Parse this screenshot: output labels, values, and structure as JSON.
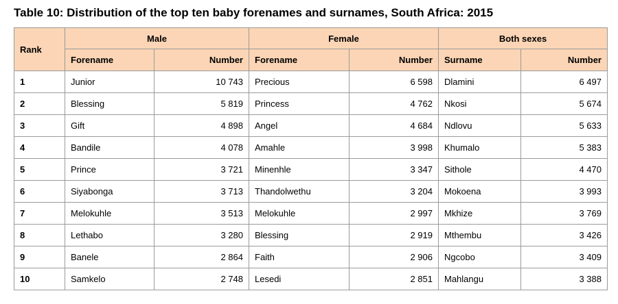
{
  "title": "Table 10: Distribution of the top ten baby forenames and surnames, South Africa: 2015",
  "header": {
    "rank": "Rank",
    "groups": {
      "male": "Male",
      "female": "Female",
      "both": "Both sexes"
    },
    "columns": {
      "male_name": "Forename",
      "male_number": "Number",
      "female_name": "Forename",
      "female_number": "Number",
      "both_name": "Surname",
      "both_number": "Number"
    }
  },
  "rows": [
    {
      "rank": "1",
      "male_name": "Junior",
      "male_number": "10 743",
      "female_name": "Precious",
      "female_number": "6 598",
      "surname": "Dlamini",
      "surname_number": "6 497"
    },
    {
      "rank": "2",
      "male_name": "Blessing",
      "male_number": "5 819",
      "female_name": "Princess",
      "female_number": "4 762",
      "surname": "Nkosi",
      "surname_number": "5 674"
    },
    {
      "rank": "3",
      "male_name": "Gift",
      "male_number": "4 898",
      "female_name": "Angel",
      "female_number": "4 684",
      "surname": "Ndlovu",
      "surname_number": "5 633"
    },
    {
      "rank": "4",
      "male_name": "Bandile",
      "male_number": "4 078",
      "female_name": "Amahle",
      "female_number": "3 998",
      "surname": "Khumalo",
      "surname_number": "5 383"
    },
    {
      "rank": "5",
      "male_name": "Prince",
      "male_number": "3 721",
      "female_name": "Minenhle",
      "female_number": "3 347",
      "surname": "Sithole",
      "surname_number": "4 470"
    },
    {
      "rank": "6",
      "male_name": "Siyabonga",
      "male_number": "3 713",
      "female_name": "Thandolwethu",
      "female_number": "3 204",
      "surname": "Mokoena",
      "surname_number": "3 993"
    },
    {
      "rank": "7",
      "male_name": "Melokuhle",
      "male_number": "3 513",
      "female_name": "Melokuhle",
      "female_number": "2 997",
      "surname": "Mkhize",
      "surname_number": "3 769"
    },
    {
      "rank": "8",
      "male_name": "Lethabo",
      "male_number": "3 280",
      "female_name": "Blessing",
      "female_number": "2 919",
      "surname": "Mthembu",
      "surname_number": "3 426"
    },
    {
      "rank": "9",
      "male_name": "Banele",
      "male_number": "2 864",
      "female_name": "Faith",
      "female_number": "2 906",
      "surname": "Ngcobo",
      "surname_number": "3 409"
    },
    {
      "rank": "10",
      "male_name": "Samkelo",
      "male_number": "2 748",
      "female_name": "Lesedi",
      "female_number": "2 851",
      "surname": "Mahlangu",
      "surname_number": "3 388"
    }
  ],
  "colors": {
    "header_background": "#fbd5b5",
    "border": "#9a9a9a",
    "text": "#000000"
  }
}
